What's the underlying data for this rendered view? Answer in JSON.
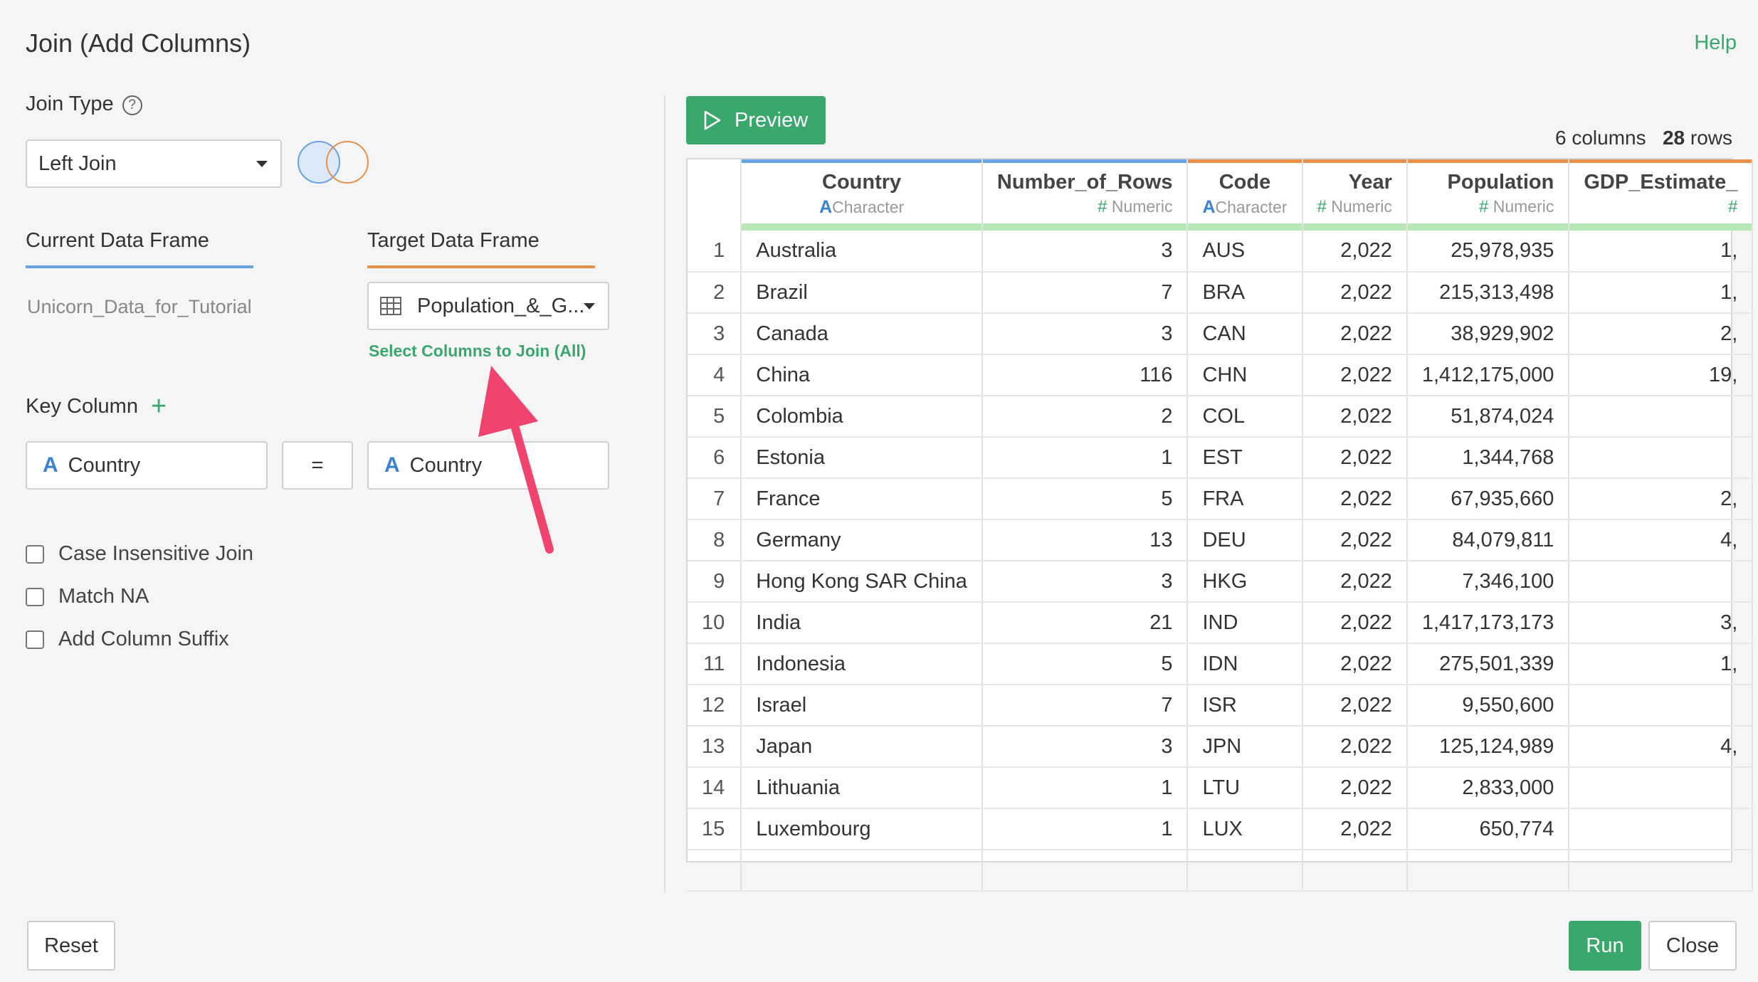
{
  "dialog": {
    "title": "Join (Add Columns)",
    "help_label": "Help"
  },
  "join_type": {
    "label": "Join Type",
    "help_glyph": "?",
    "selected": "Left Join"
  },
  "frames": {
    "current_tab": "Current Data Frame",
    "target_tab": "Target Data Frame",
    "current_name": "Unicorn_Data_for_Tutorial",
    "target_name": "Population_&_G...",
    "select_columns_link": "Select Columns to Join (All)"
  },
  "key_column": {
    "label": "Key Column",
    "add_glyph": "+",
    "type_glyph": "A",
    "left": "Country",
    "operator": "=",
    "right": "Country"
  },
  "options": [
    {
      "label": "Case Insensitive Join",
      "checked": false
    },
    {
      "label": "Match NA",
      "checked": false
    },
    {
      "label": "Add Column Suffix",
      "checked": false
    }
  ],
  "preview": {
    "button_label": "Preview",
    "columns_count": "6",
    "columns_word": "columns",
    "rows_count": "28",
    "rows_word": "rows"
  },
  "table": {
    "columns": [
      {
        "name": "Country",
        "type_glyph": "A",
        "type": "Character",
        "source": "current",
        "numeric": false
      },
      {
        "name": "Number_of_Rows",
        "type_glyph": "#",
        "type": "Numeric",
        "source": "current",
        "numeric": true
      },
      {
        "name": "Code",
        "type_glyph": "A",
        "type": "Character",
        "source": "target",
        "numeric": false
      },
      {
        "name": "Year",
        "type_glyph": "#",
        "type": "Numeric",
        "source": "target",
        "numeric": true
      },
      {
        "name": "Population",
        "type_glyph": "#",
        "type": "Numeric",
        "source": "target",
        "numeric": true
      },
      {
        "name": "GDP_Estimate_",
        "type_glyph": "#",
        "type": "",
        "source": "target",
        "numeric": true
      }
    ],
    "rows": [
      [
        "1",
        "Australia",
        "3",
        "AUS",
        "2,022",
        "25,978,935",
        "1,"
      ],
      [
        "2",
        "Brazil",
        "7",
        "BRA",
        "2,022",
        "215,313,498",
        "1,"
      ],
      [
        "3",
        "Canada",
        "3",
        "CAN",
        "2,022",
        "38,929,902",
        "2,"
      ],
      [
        "4",
        "China",
        "116",
        "CHN",
        "2,022",
        "1,412,175,000",
        "19,"
      ],
      [
        "5",
        "Colombia",
        "2",
        "COL",
        "2,022",
        "51,874,024",
        ""
      ],
      [
        "6",
        "Estonia",
        "1",
        "EST",
        "2,022",
        "1,344,768",
        ""
      ],
      [
        "7",
        "France",
        "5",
        "FRA",
        "2,022",
        "67,935,660",
        "2,"
      ],
      [
        "8",
        "Germany",
        "13",
        "DEU",
        "2,022",
        "84,079,811",
        "4,"
      ],
      [
        "9",
        "Hong Kong SAR China",
        "3",
        "HKG",
        "2,022",
        "7,346,100",
        ""
      ],
      [
        "10",
        "India",
        "21",
        "IND",
        "2,022",
        "1,417,173,173",
        "3,"
      ],
      [
        "11",
        "Indonesia",
        "5",
        "IDN",
        "2,022",
        "275,501,339",
        "1,"
      ],
      [
        "12",
        "Israel",
        "7",
        "ISR",
        "2,022",
        "9,550,600",
        ""
      ],
      [
        "13",
        "Japan",
        "3",
        "JPN",
        "2,022",
        "125,124,989",
        "4,"
      ],
      [
        "14",
        "Lithuania",
        "1",
        "LTU",
        "2,022",
        "2,833,000",
        ""
      ],
      [
        "15",
        "Luxembourg",
        "1",
        "LUX",
        "2,022",
        "650,774",
        ""
      ]
    ]
  },
  "footer": {
    "reset_label": "Reset",
    "run_label": "Run",
    "close_label": "Close"
  },
  "colors": {
    "accent_green": "#3aa76d",
    "current_blue": "#6aa2e8",
    "target_orange": "#e8914a",
    "arrow_pink": "#f0436e"
  }
}
